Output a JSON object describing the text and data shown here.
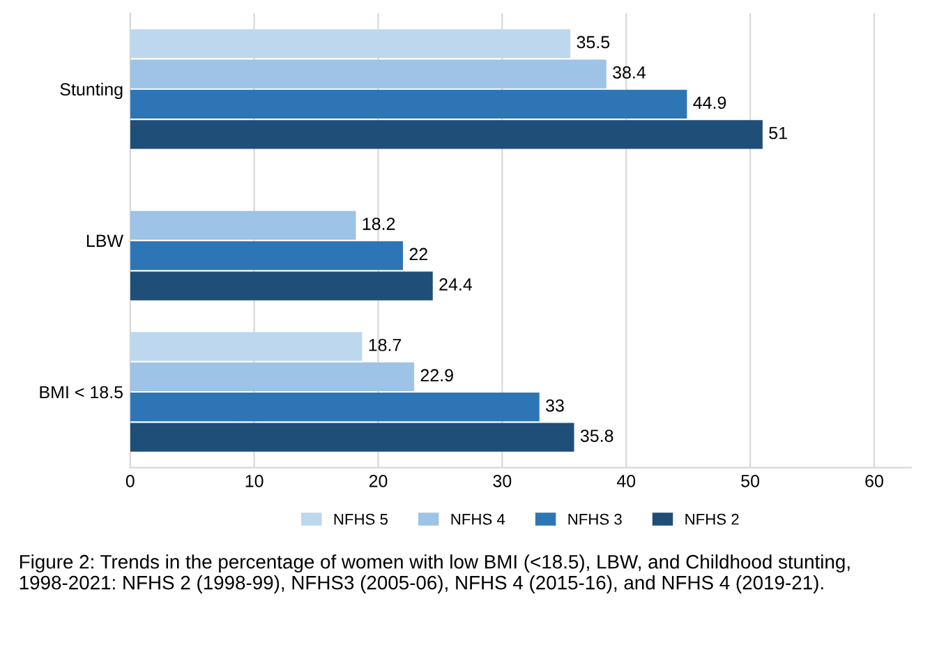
{
  "chart_data": {
    "type": "bar",
    "orientation": "horizontal",
    "categories": [
      "Stunting",
      "LBW",
      "BMI < 18.5"
    ],
    "series": [
      {
        "name": "NFHS 5",
        "color": "#bdd7ee",
        "values": [
          35.5,
          null,
          18.7
        ]
      },
      {
        "name": "NFHS 4",
        "color": "#9dc3e6",
        "values": [
          38.4,
          18.2,
          22.9
        ]
      },
      {
        "name": "NFHS 3",
        "color": "#2e75b6",
        "values": [
          44.9,
          22,
          33
        ]
      },
      {
        "name": "NFHS 2",
        "color": "#1f4e79",
        "values": [
          51,
          24.4,
          35.8
        ]
      }
    ],
    "xlim": [
      0,
      63
    ],
    "xticks": [
      0,
      10,
      20,
      30,
      40,
      50,
      60
    ],
    "grid": "x",
    "legend": "bottom",
    "data_labels": true,
    "annotations": [
      "Figure 2: Trends in the percentage of women with low BMI (<18.5), LBW, and Childhood stunting, 1998-2021: NFHS 2 (1998-99), NFHS3 (2005-06), NFHS 4 (2015-16), and NFHS 4 (2019-21)."
    ]
  }
}
